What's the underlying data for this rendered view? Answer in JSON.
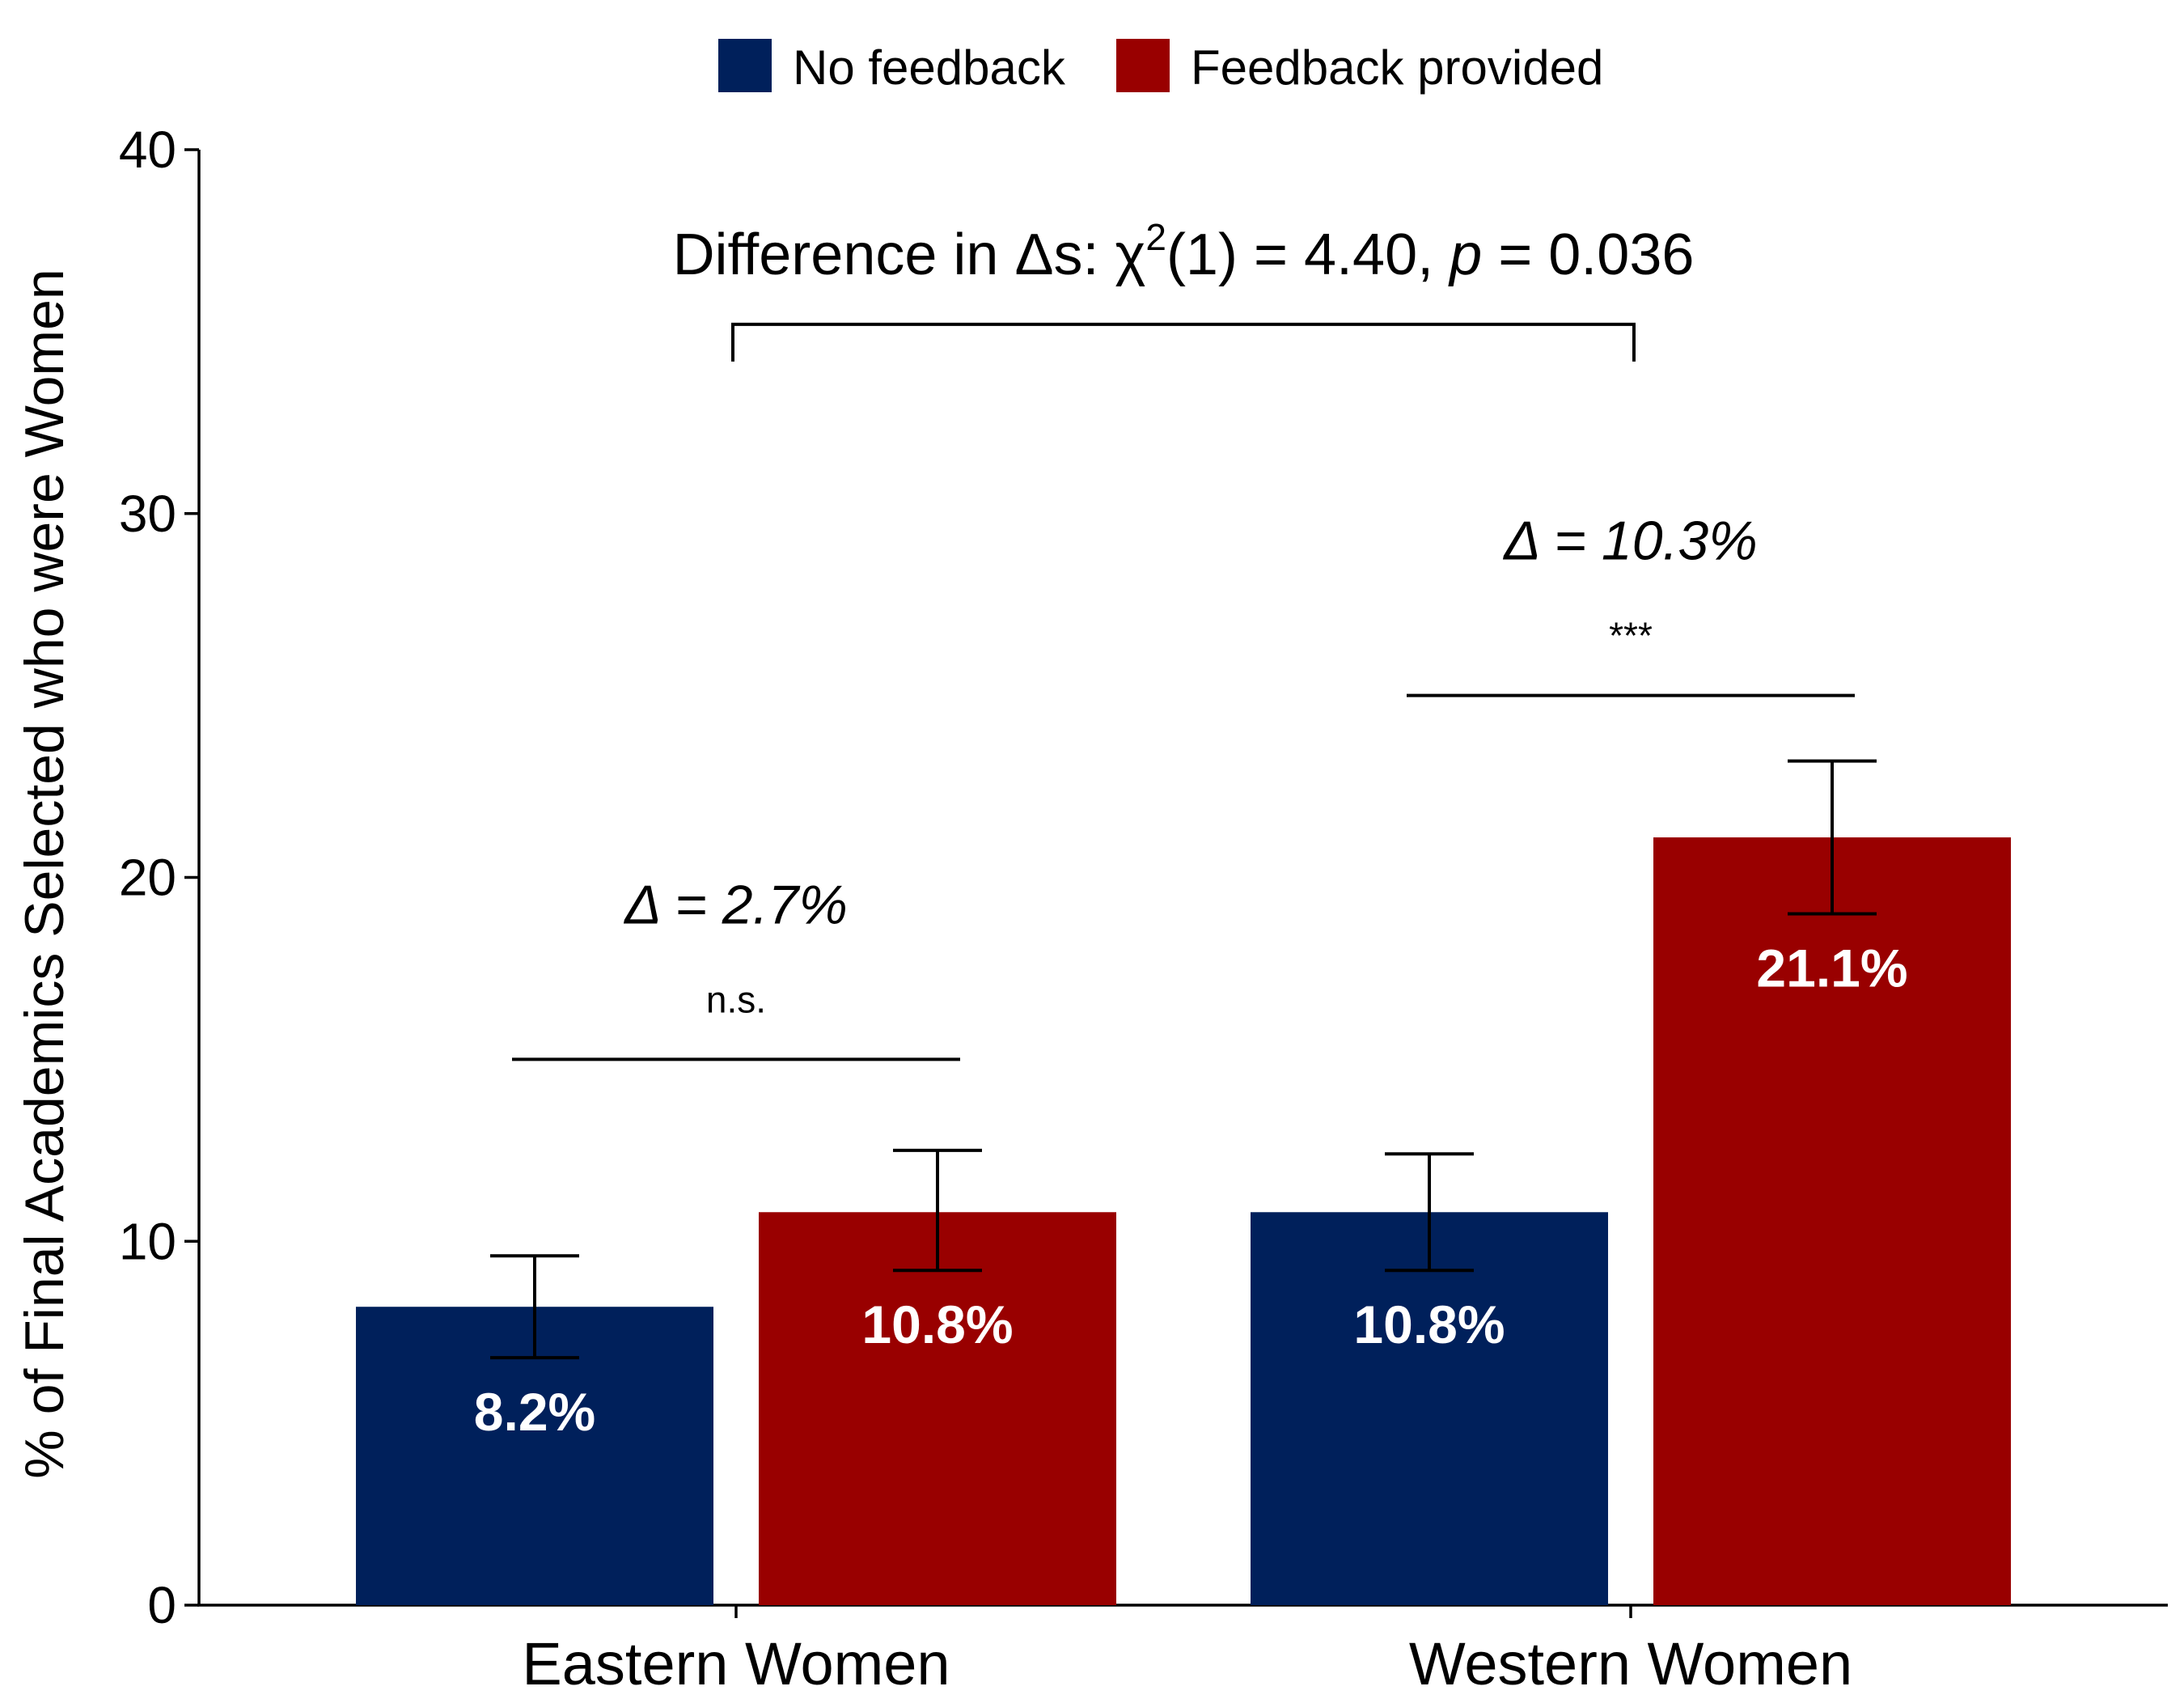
{
  "chart_data": {
    "type": "bar",
    "categories": [
      "Eastern Women",
      "Western Women"
    ],
    "series": [
      {
        "name": "No feedback",
        "color": "#00205b",
        "values": [
          8.2,
          10.8
        ],
        "labels": [
          "8.2%",
          "10.8%"
        ],
        "error_low": [
          6.8,
          9.2
        ],
        "error_high": [
          9.6,
          12.4
        ]
      },
      {
        "name": "Feedback provided",
        "color": "#990000",
        "values": [
          10.8,
          21.1
        ],
        "labels": [
          "10.8%",
          "21.1%"
        ],
        "error_low": [
          9.2,
          19.0
        ],
        "error_high": [
          12.5,
          23.2
        ]
      }
    ],
    "ylabel": "% of Final Academics Selected who were Women",
    "xlabel": "",
    "ylim": [
      0,
      40
    ],
    "yticks": [
      0,
      10,
      20,
      30,
      40
    ],
    "legend_position": "top",
    "comparisons": [
      {
        "category": "Eastern Women",
        "delta": "Δ = 2.7%",
        "significance": "n.s.",
        "bar_y": 15
      },
      {
        "category": "Western Women",
        "delta": "Δ = 10.3%",
        "significance": "***",
        "bar_y": 25
      }
    ],
    "top_annotation": {
      "prefix": "Difference in Δs: χ",
      "superscript": "2",
      "middle": "(1) = 4.40, ",
      "p_symbol": "p",
      "suffix": " = 0.036",
      "bracket_y": 35.2
    },
    "grid": false
  }
}
